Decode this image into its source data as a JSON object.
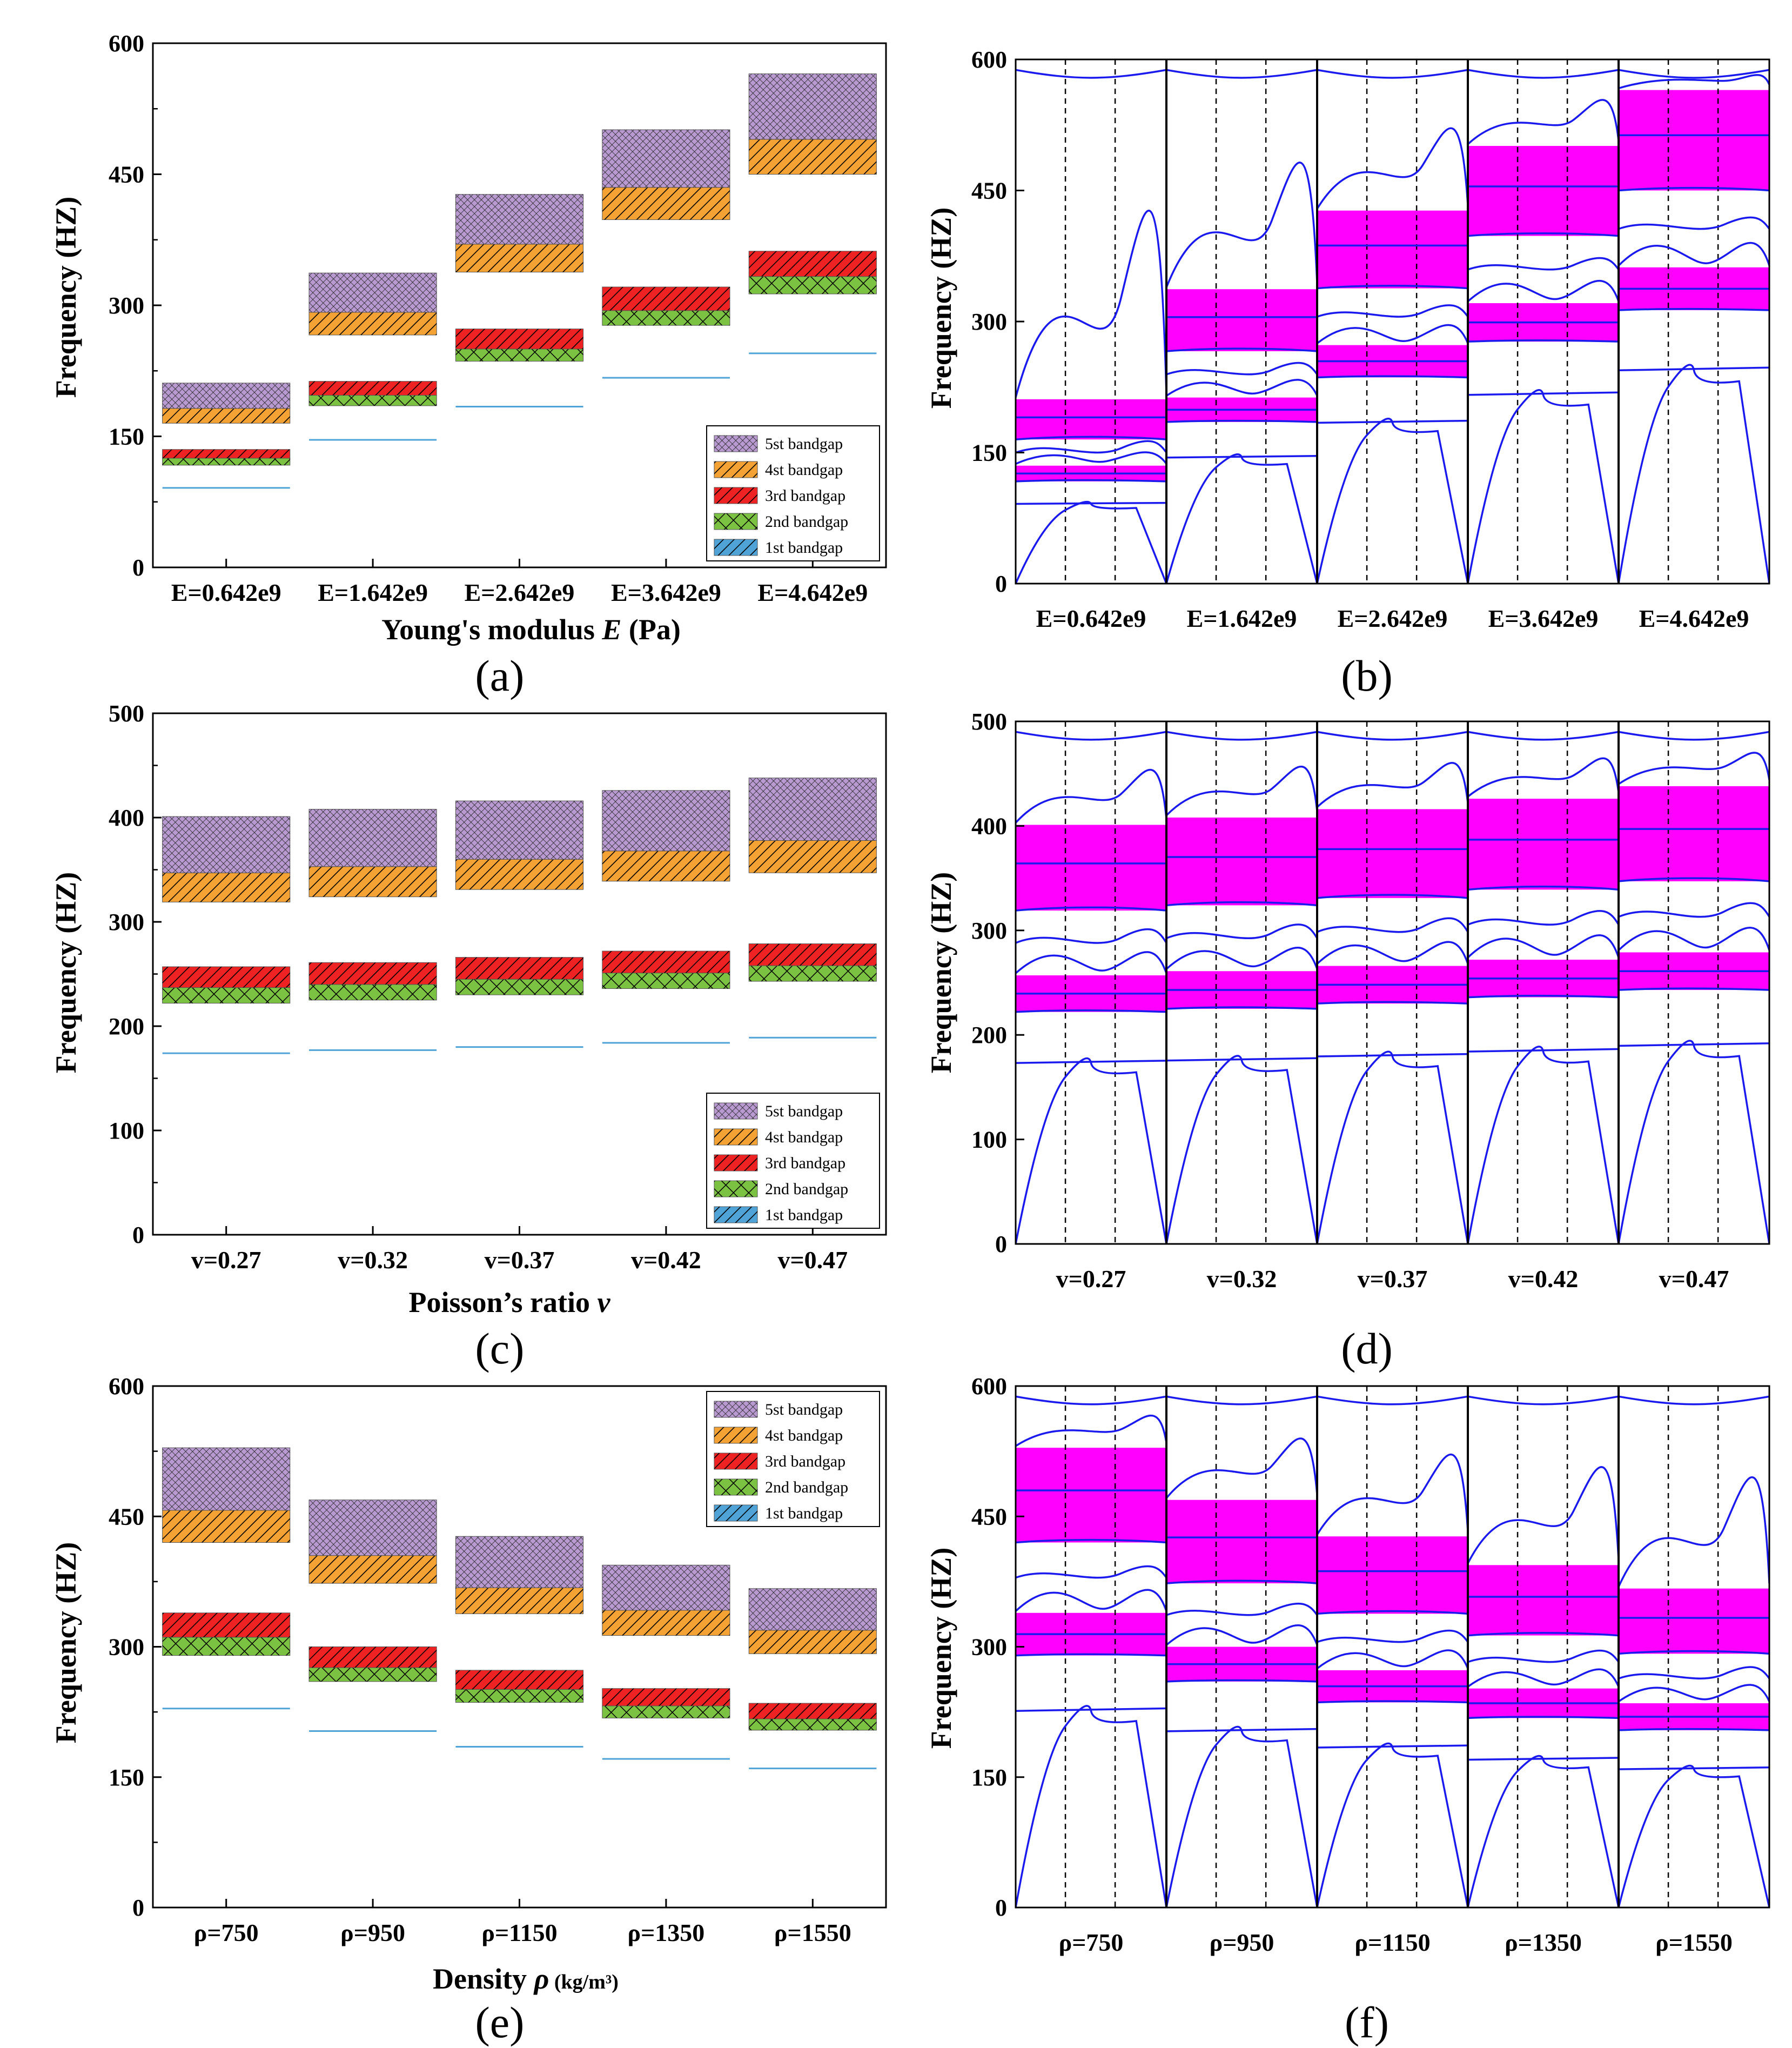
{
  "colors": {
    "gap1": "#4fa3d6",
    "gap2": "#7cc242",
    "gap3": "#ee2222",
    "gap4": "#f4a234",
    "gap5": "#b89ad0",
    "magenta": "#ff00ff",
    "band_line": "#1a1aee"
  },
  "legend_labels": [
    "5st bandgap",
    "4st bandgap",
    "3rd bandgap",
    "2nd bandgap",
    "1st bandgap"
  ],
  "panels": [
    {
      "id": "a",
      "label": "(a)",
      "kind": "gap-bars",
      "ylabel": "Frequency (HZ)",
      "xlabel_parts": [
        "Young's modulus ",
        "E",
        " (Pa)"
      ],
      "ylim": [
        0,
        600
      ],
      "yticks": [
        0,
        150,
        300,
        450,
        600
      ],
      "legend_pos": "bottom-right",
      "categories": [
        "E=0.642e9",
        "E=1.642e9",
        "E=2.642e9",
        "E=3.642e9",
        "E=4.642e9"
      ]
    },
    {
      "id": "b",
      "label": "(b)",
      "kind": "band-structure",
      "ylabel": "Frequency (HZ)",
      "ylim": [
        0,
        600
      ],
      "yticks": [
        0,
        150,
        300,
        450,
        600
      ],
      "categories": [
        "E=0.642e9",
        "E=1.642e9",
        "E=2.642e9",
        "E=3.642e9",
        "E=4.642e9"
      ]
    },
    {
      "id": "c",
      "label": "(c)",
      "kind": "gap-bars",
      "ylabel": "Frequency (HZ)",
      "xlabel_parts": [
        "Poisson’s ratio ",
        "v",
        ""
      ],
      "ylim": [
        0,
        500
      ],
      "yticks": [
        0,
        100,
        200,
        300,
        400,
        500
      ],
      "legend_pos": "bottom-right",
      "categories": [
        "v=0.27",
        "v=0.32",
        "v=0.37",
        "v=0.42",
        "v=0.47"
      ]
    },
    {
      "id": "d",
      "label": "(d)",
      "kind": "band-structure",
      "ylabel": "Frequency (HZ)",
      "ylim": [
        0,
        500
      ],
      "yticks": [
        0,
        100,
        200,
        300,
        400,
        500
      ],
      "categories": [
        "v=0.27",
        "v=0.32",
        "v=0.37",
        "v=0.42",
        "v=0.47"
      ]
    },
    {
      "id": "e",
      "label": "(e)",
      "kind": "gap-bars",
      "ylabel": "Frequency (HZ)",
      "xlabel_parts": [
        "Density ",
        "ρ",
        " (kg/m³)"
      ],
      "ylim": [
        0,
        600
      ],
      "yticks": [
        0,
        150,
        300,
        450,
        600
      ],
      "legend_pos": "top-right",
      "categories": [
        "ρ=750",
        "ρ=950",
        "ρ=1150",
        "ρ=1350",
        "ρ=1550"
      ]
    },
    {
      "id": "f",
      "label": "(f)",
      "kind": "band-structure",
      "ylabel": "Frequency (HZ)",
      "ylim": [
        0,
        600
      ],
      "yticks": [
        0,
        150,
        300,
        450,
        600
      ],
      "categories": [
        "ρ=750",
        "ρ=950",
        "ρ=1150",
        "ρ=1350",
        "ρ=1550"
      ]
    }
  ],
  "chart_data": [
    {
      "type": "bar",
      "panel": "a",
      "xlabel": "Young's modulus E (Pa)",
      "ylabel": "Frequency (HZ)",
      "ylim": [
        0,
        600
      ],
      "categories": [
        "E=0.642e9",
        "E=1.642e9",
        "E=2.642e9",
        "E=3.642e9",
        "E=4.642e9"
      ],
      "series": [
        {
          "name": "1st bandgap",
          "ranges": [
            [
              90,
              91
            ],
            [
              144,
              146
            ],
            [
              182,
              184
            ],
            [
              215,
              217
            ],
            [
              243,
              245
            ]
          ]
        },
        {
          "name": "2nd bandgap",
          "ranges": [
            [
              117,
              125
            ],
            [
              185,
              197
            ],
            [
              236,
              250
            ],
            [
              277,
              294
            ],
            [
              313,
              333
            ]
          ]
        },
        {
          "name": "3rd bandgap",
          "ranges": [
            [
              125,
              135
            ],
            [
              197,
              213
            ],
            [
              250,
              273
            ],
            [
              294,
              321
            ],
            [
              333,
              362
            ]
          ]
        },
        {
          "name": "4st bandgap",
          "ranges": [
            [
              165,
              182
            ],
            [
              266,
              292
            ],
            [
              338,
              370
            ],
            [
              398,
              435
            ],
            [
              450,
              490
            ]
          ]
        },
        {
          "name": "5st bandgap",
          "ranges": [
            [
              182,
              211
            ],
            [
              292,
              337
            ],
            [
              370,
              427
            ],
            [
              435,
              501
            ],
            [
              490,
              565
            ]
          ]
        }
      ]
    },
    {
      "type": "line",
      "panel": "b",
      "ylabel": "Frequency (HZ)",
      "ylim": [
        0,
        600
      ],
      "categories": [
        "E=0.642e9",
        "E=1.642e9",
        "E=2.642e9",
        "E=3.642e9",
        "E=4.642e9"
      ],
      "bandgaps": [
        [
          [
            117,
            135
          ],
          [
            165,
            211
          ]
        ],
        [
          [
            185,
            213
          ],
          [
            266,
            337
          ]
        ],
        [
          [
            236,
            273
          ],
          [
            338,
            427
          ]
        ],
        [
          [
            277,
            321
          ],
          [
            398,
            501
          ]
        ],
        [
          [
            313,
            362
          ],
          [
            450,
            565
          ]
        ]
      ]
    },
    {
      "type": "bar",
      "panel": "c",
      "xlabel": "Poisson’s ratio v",
      "ylabel": "Frequency (HZ)",
      "ylim": [
        0,
        500
      ],
      "categories": [
        "v=0.27",
        "v=0.32",
        "v=0.37",
        "v=0.42",
        "v=0.47"
      ],
      "series": [
        {
          "name": "1st bandgap",
          "ranges": [
            [
              173,
              174
            ],
            [
              176,
              177
            ],
            [
              179,
              180
            ],
            [
              183,
              184
            ],
            [
              188,
              189
            ]
          ]
        },
        {
          "name": "2nd bandgap",
          "ranges": [
            [
              222,
              237
            ],
            [
              225,
              240
            ],
            [
              230,
              245
            ],
            [
              236,
              251
            ],
            [
              243,
              258
            ]
          ]
        },
        {
          "name": "3rd bandgap",
          "ranges": [
            [
              237,
              257
            ],
            [
              240,
              261
            ],
            [
              245,
              266
            ],
            [
              251,
              272
            ],
            [
              258,
              279
            ]
          ]
        },
        {
          "name": "4st bandgap",
          "ranges": [
            [
              319,
              347
            ],
            [
              324,
              353
            ],
            [
              331,
              360
            ],
            [
              339,
              368
            ],
            [
              347,
              378
            ]
          ]
        },
        {
          "name": "5st bandgap",
          "ranges": [
            [
              347,
              401
            ],
            [
              353,
              408
            ],
            [
              360,
              416
            ],
            [
              368,
              426
            ],
            [
              378,
              438
            ]
          ]
        }
      ]
    },
    {
      "type": "line",
      "panel": "d",
      "ylabel": "Frequency (HZ)",
      "ylim": [
        0,
        500
      ],
      "categories": [
        "v=0.27",
        "v=0.32",
        "v=0.37",
        "v=0.42",
        "v=0.47"
      ],
      "bandgaps": [
        [
          [
            222,
            257
          ],
          [
            319,
            401
          ]
        ],
        [
          [
            225,
            261
          ],
          [
            324,
            408
          ]
        ],
        [
          [
            230,
            266
          ],
          [
            331,
            416
          ]
        ],
        [
          [
            236,
            272
          ],
          [
            339,
            426
          ]
        ],
        [
          [
            243,
            279
          ],
          [
            347,
            438
          ]
        ]
      ]
    },
    {
      "type": "bar",
      "panel": "e",
      "xlabel": "Density ρ (kg/m³)",
      "ylabel": "Frequency (HZ)",
      "ylim": [
        0,
        600
      ],
      "categories": [
        "ρ=750",
        "ρ=950",
        "ρ=1150",
        "ρ=1350",
        "ρ=1550"
      ],
      "series": [
        {
          "name": "1st bandgap",
          "ranges": [
            [
              228,
              229
            ],
            [
              202,
              203
            ],
            [
              184,
              185
            ],
            [
              170,
              171
            ],
            [
              159,
              160
            ]
          ]
        },
        {
          "name": "2nd bandgap",
          "ranges": [
            [
              290,
              311
            ],
            [
              260,
              276
            ],
            [
              236,
              251
            ],
            [
              218,
              232
            ],
            [
              204,
              217
            ]
          ]
        },
        {
          "name": "3rd bandgap",
          "ranges": [
            [
              311,
              339
            ],
            [
              276,
              300
            ],
            [
              251,
              273
            ],
            [
              232,
              252
            ],
            [
              217,
              235
            ]
          ]
        },
        {
          "name": "4st bandgap",
          "ranges": [
            [
              420,
              457
            ],
            [
              373,
              405
            ],
            [
              338,
              368
            ],
            [
              313,
              342
            ],
            [
              292,
              319
            ]
          ]
        },
        {
          "name": "5st bandgap",
          "ranges": [
            [
              457,
              529
            ],
            [
              405,
              469
            ],
            [
              368,
              427
            ],
            [
              342,
              394
            ],
            [
              319,
              367
            ]
          ]
        }
      ]
    },
    {
      "type": "line",
      "panel": "f",
      "ylabel": "Frequency (HZ)",
      "ylim": [
        0,
        600
      ],
      "categories": [
        "ρ=750",
        "ρ=950",
        "ρ=1150",
        "ρ=1350",
        "ρ=1550"
      ],
      "bandgaps": [
        [
          [
            290,
            339
          ],
          [
            420,
            529
          ]
        ],
        [
          [
            260,
            300
          ],
          [
            373,
            469
          ]
        ],
        [
          [
            236,
            273
          ],
          [
            338,
            427
          ]
        ],
        [
          [
            218,
            252
          ],
          [
            313,
            394
          ]
        ],
        [
          [
            204,
            235
          ],
          [
            292,
            367
          ]
        ]
      ]
    }
  ]
}
